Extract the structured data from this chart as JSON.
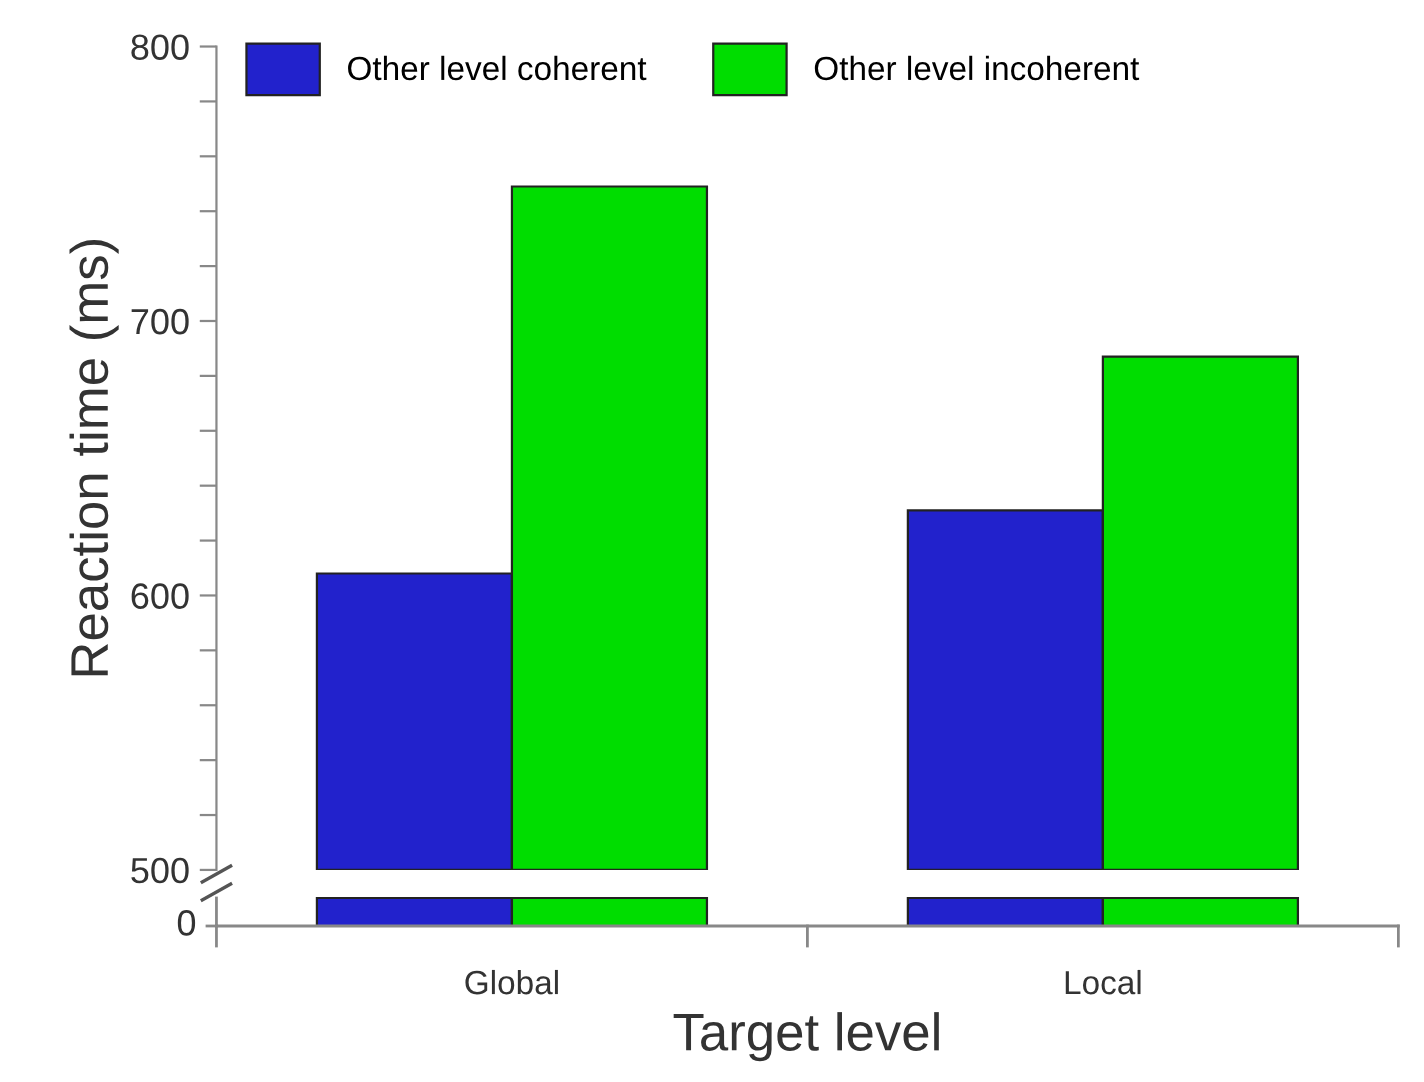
{
  "chart_data": {
    "type": "bar",
    "xlabel": "Target level",
    "ylabel": "Reaction time (ms)",
    "categories": [
      "Global",
      "Local"
    ],
    "series": [
      {
        "name": "Other level coherent",
        "color": "#2222cc",
        "values": [
          608,
          631
        ]
      },
      {
        "name": "Other level incoherent",
        "color": "#00dd00",
        "values": [
          749,
          687
        ]
      }
    ],
    "ylim": [
      500,
      800
    ],
    "yticks": [
      500,
      {
        "value": 520,
        "label": null
      },
      {
        "value": 540,
        "label": null
      },
      {
        "value": 560,
        "label": null
      },
      {
        "value": 580,
        "label": null
      },
      600,
      {
        "value": 620,
        "label": null
      },
      {
        "value": 640,
        "label": null
      },
      {
        "value": 660,
        "label": null
      },
      {
        "value": 680,
        "label": null
      },
      700,
      {
        "value": 720,
        "label": null
      },
      {
        "value": 740,
        "label": null
      },
      {
        "value": 760,
        "label": null
      },
      {
        "value": 780,
        "label": null
      },
      800
    ],
    "annotations": [
      "0"
    ],
    "grid": false,
    "legend": "top left"
  }
}
